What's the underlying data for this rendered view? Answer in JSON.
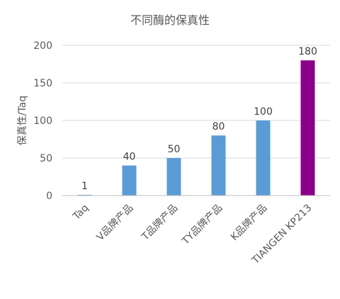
{
  "chart_data": {
    "type": "bar",
    "title": "不同酶的保真性",
    "xlabel": "",
    "ylabel": "保真性/Taq",
    "ylim": [
      0,
      200
    ],
    "yticks": [
      0,
      50,
      100,
      150,
      200
    ],
    "grid": true,
    "categories": [
      "Taq",
      "V品牌产品",
      "T品牌产品",
      "TY品牌产品",
      "K品牌产品",
      "TIANGEN KP213"
    ],
    "values": [
      1,
      40,
      50,
      80,
      100,
      180
    ],
    "data_labels": [
      "1",
      "40",
      "50",
      "80",
      "100",
      "180"
    ],
    "colors": [
      "#5b9bd5",
      "#5b9bd5",
      "#5b9bd5",
      "#5b9bd5",
      "#5b9bd5",
      "#8b008b"
    ]
  }
}
